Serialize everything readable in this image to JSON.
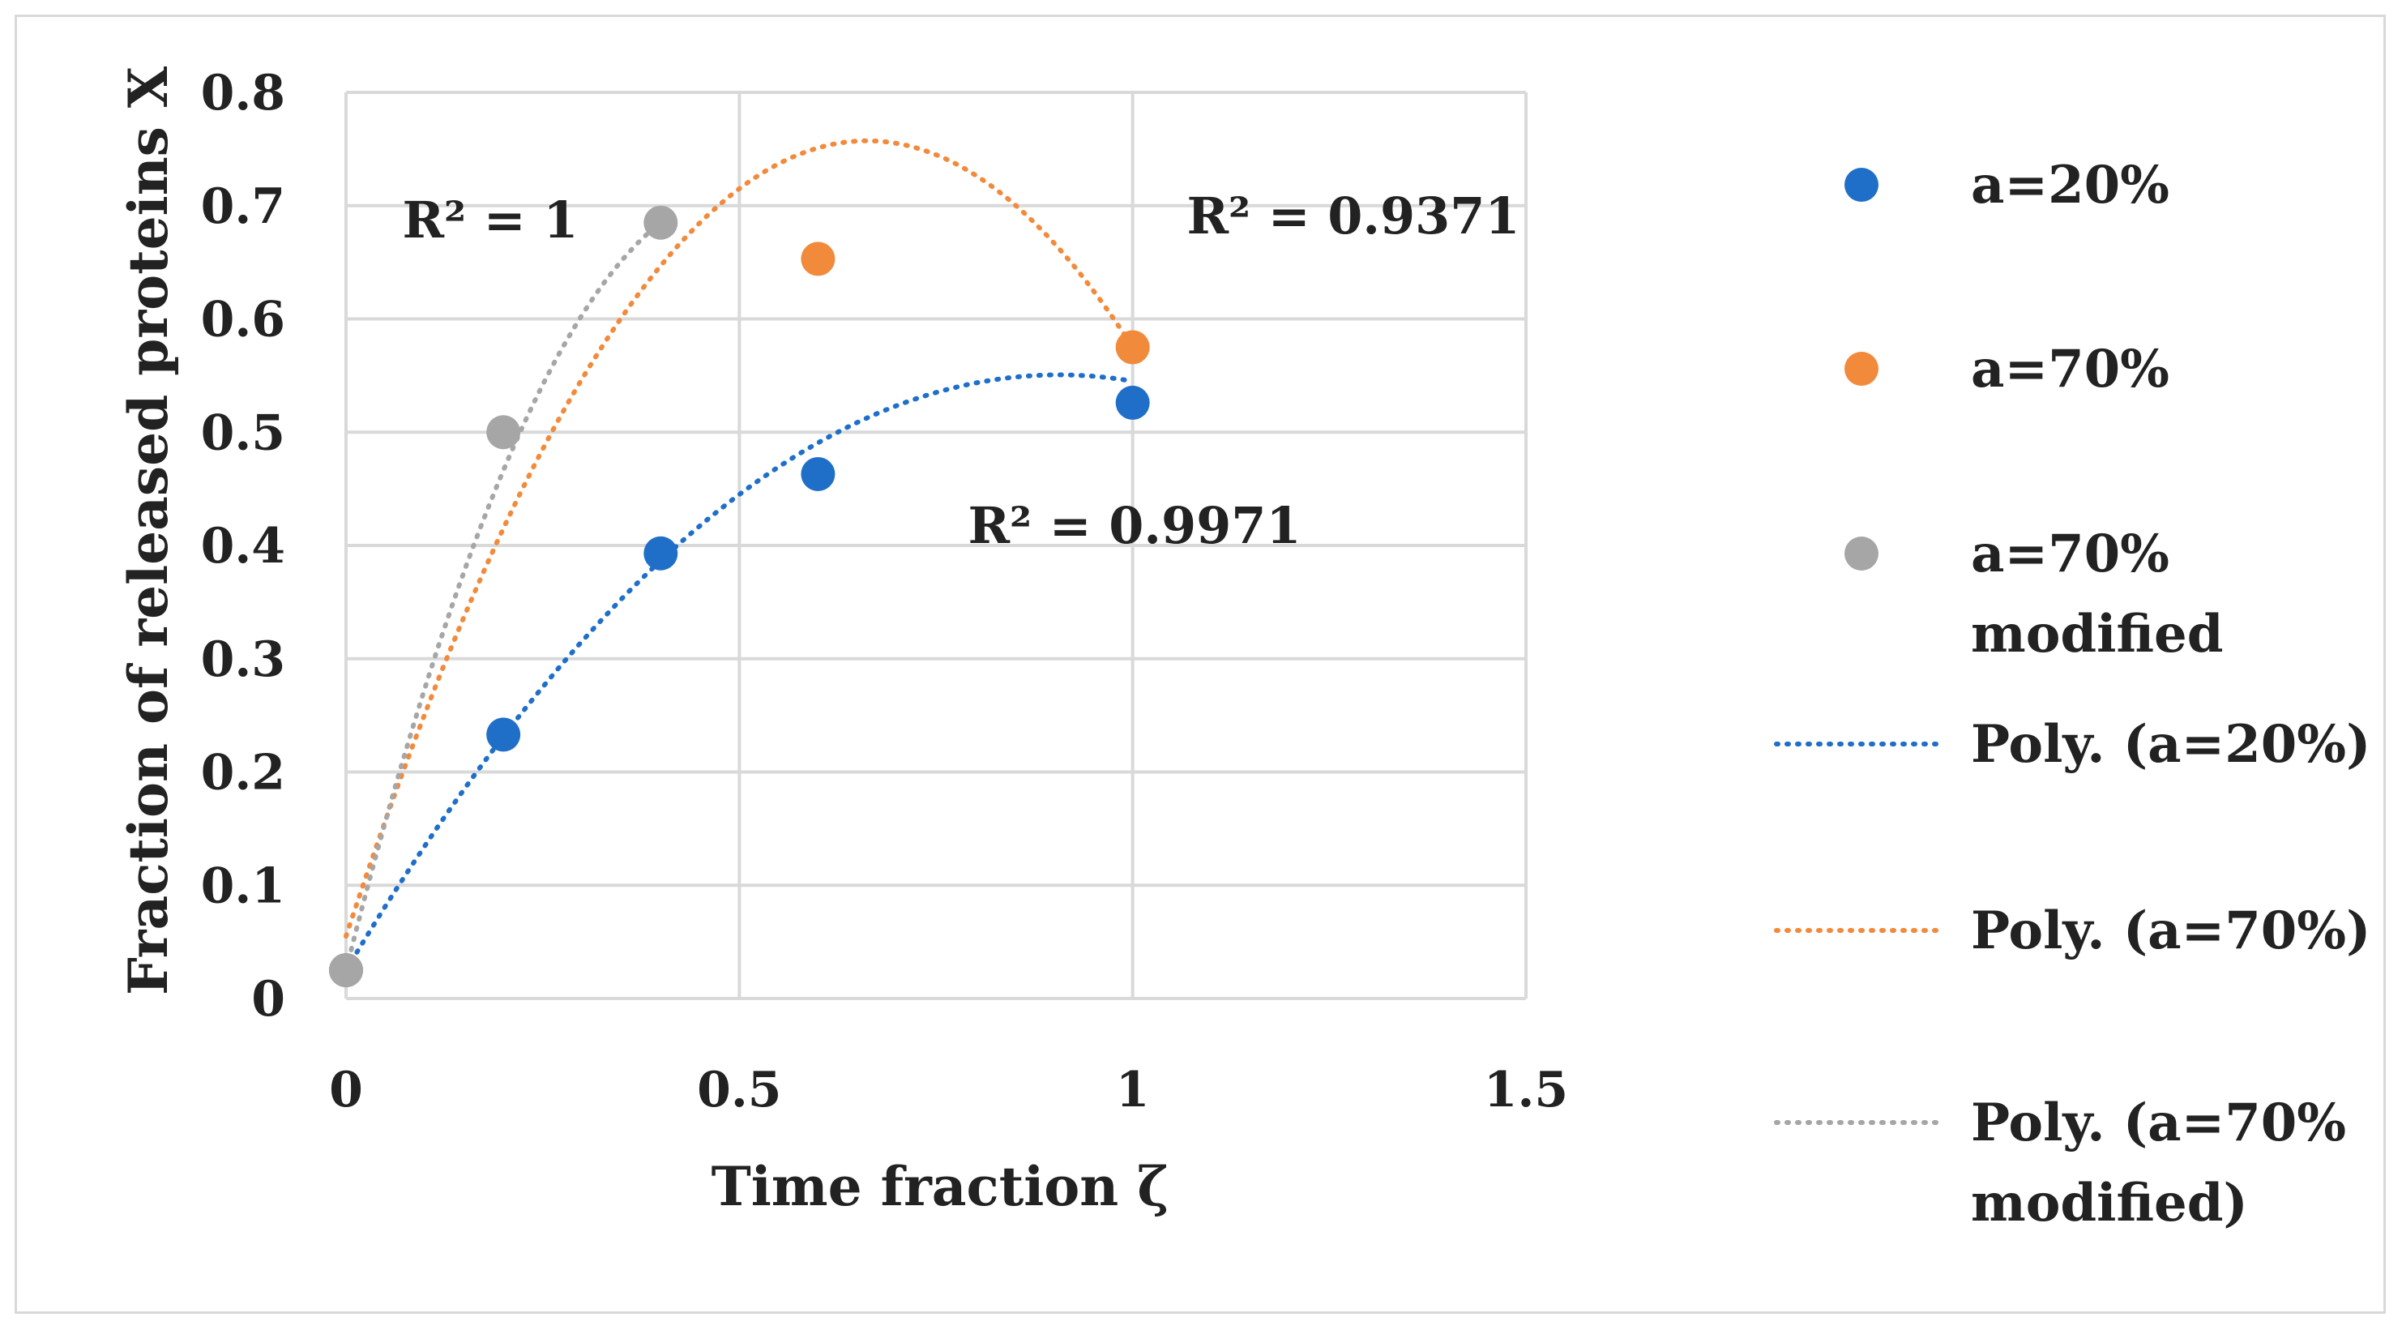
{
  "chart_data": {
    "type": "scatter",
    "title": "",
    "xlabel": "Time fraction ζ",
    "ylabel": "Fraction of released proteins X",
    "xlim": [
      0,
      1.5
    ],
    "ylim": [
      0,
      0.8
    ],
    "xticks": [
      0,
      0.5,
      1,
      1.5
    ],
    "xtick_labels": [
      "0",
      "0.5",
      "1",
      "1.5"
    ],
    "yticks": [
      0,
      0.1,
      0.2,
      0.3,
      0.4,
      0.5,
      0.6,
      0.7,
      0.8
    ],
    "ytick_labels": [
      "0",
      "0.1",
      "0.2",
      "0.3",
      "0.4",
      "0.5",
      "0.6",
      "0.7",
      "0.8"
    ],
    "grid": true,
    "legend_position": "right",
    "series": [
      {
        "name": "a=20%",
        "color": "#1f6fc9",
        "x": [
          0,
          0.2,
          0.4,
          0.6,
          1.0
        ],
        "y": [
          0.025,
          0.233,
          0.393,
          0.463,
          0.526
        ]
      },
      {
        "name": "a=70%",
        "color": "#f28a3c",
        "x": [
          0,
          0.6,
          1.0
        ],
        "y": [
          0.025,
          0.653,
          0.575
        ]
      },
      {
        "name": "a=70% modified",
        "color": "#a6a6a6",
        "x": [
          0,
          0.2,
          0.4
        ],
        "y": [
          0.025,
          0.5,
          0.685
        ]
      }
    ],
    "trendlines": [
      {
        "name": "Poly. (a=20%)",
        "color": "#1f6fc9",
        "coefficients": [
          0.025,
          1.16,
          -0.64
        ],
        "x_range": [
          0,
          1.0
        ],
        "r_squared": "R² = 0.9971"
      },
      {
        "name": "Poly. (a=70%)",
        "color": "#f28a3c",
        "coefficients": [
          0.055,
          2.12,
          -1.6
        ],
        "x_range": [
          0,
          1.0
        ],
        "r_squared": "R² = 0.9371"
      },
      {
        "name": "Poly. (a=70% modified)",
        "color": "#a6a6a6",
        "coefficients": [
          0.025,
          2.7625,
          -2.78125
        ],
        "x_range": [
          0,
          0.4
        ],
        "r_squared": "R² = 1"
      }
    ],
    "legend": [
      {
        "kind": "marker",
        "color": "#1f6fc9",
        "lines": [
          "a=20%"
        ]
      },
      {
        "kind": "marker",
        "color": "#f28a3c",
        "lines": [
          "a=70%"
        ]
      },
      {
        "kind": "marker",
        "color": "#a6a6a6",
        "lines": [
          "a=70%",
          "modified"
        ]
      },
      {
        "kind": "line",
        "color": "#1f6fc9",
        "lines": [
          "Poly. (a=20%)"
        ]
      },
      {
        "kind": "line",
        "color": "#f28a3c",
        "lines": [
          "Poly. (a=70%)"
        ]
      },
      {
        "kind": "line",
        "color": "#a6a6a6",
        "lines": [
          "Poly. (a=70%",
          "modified)"
        ]
      }
    ]
  }
}
